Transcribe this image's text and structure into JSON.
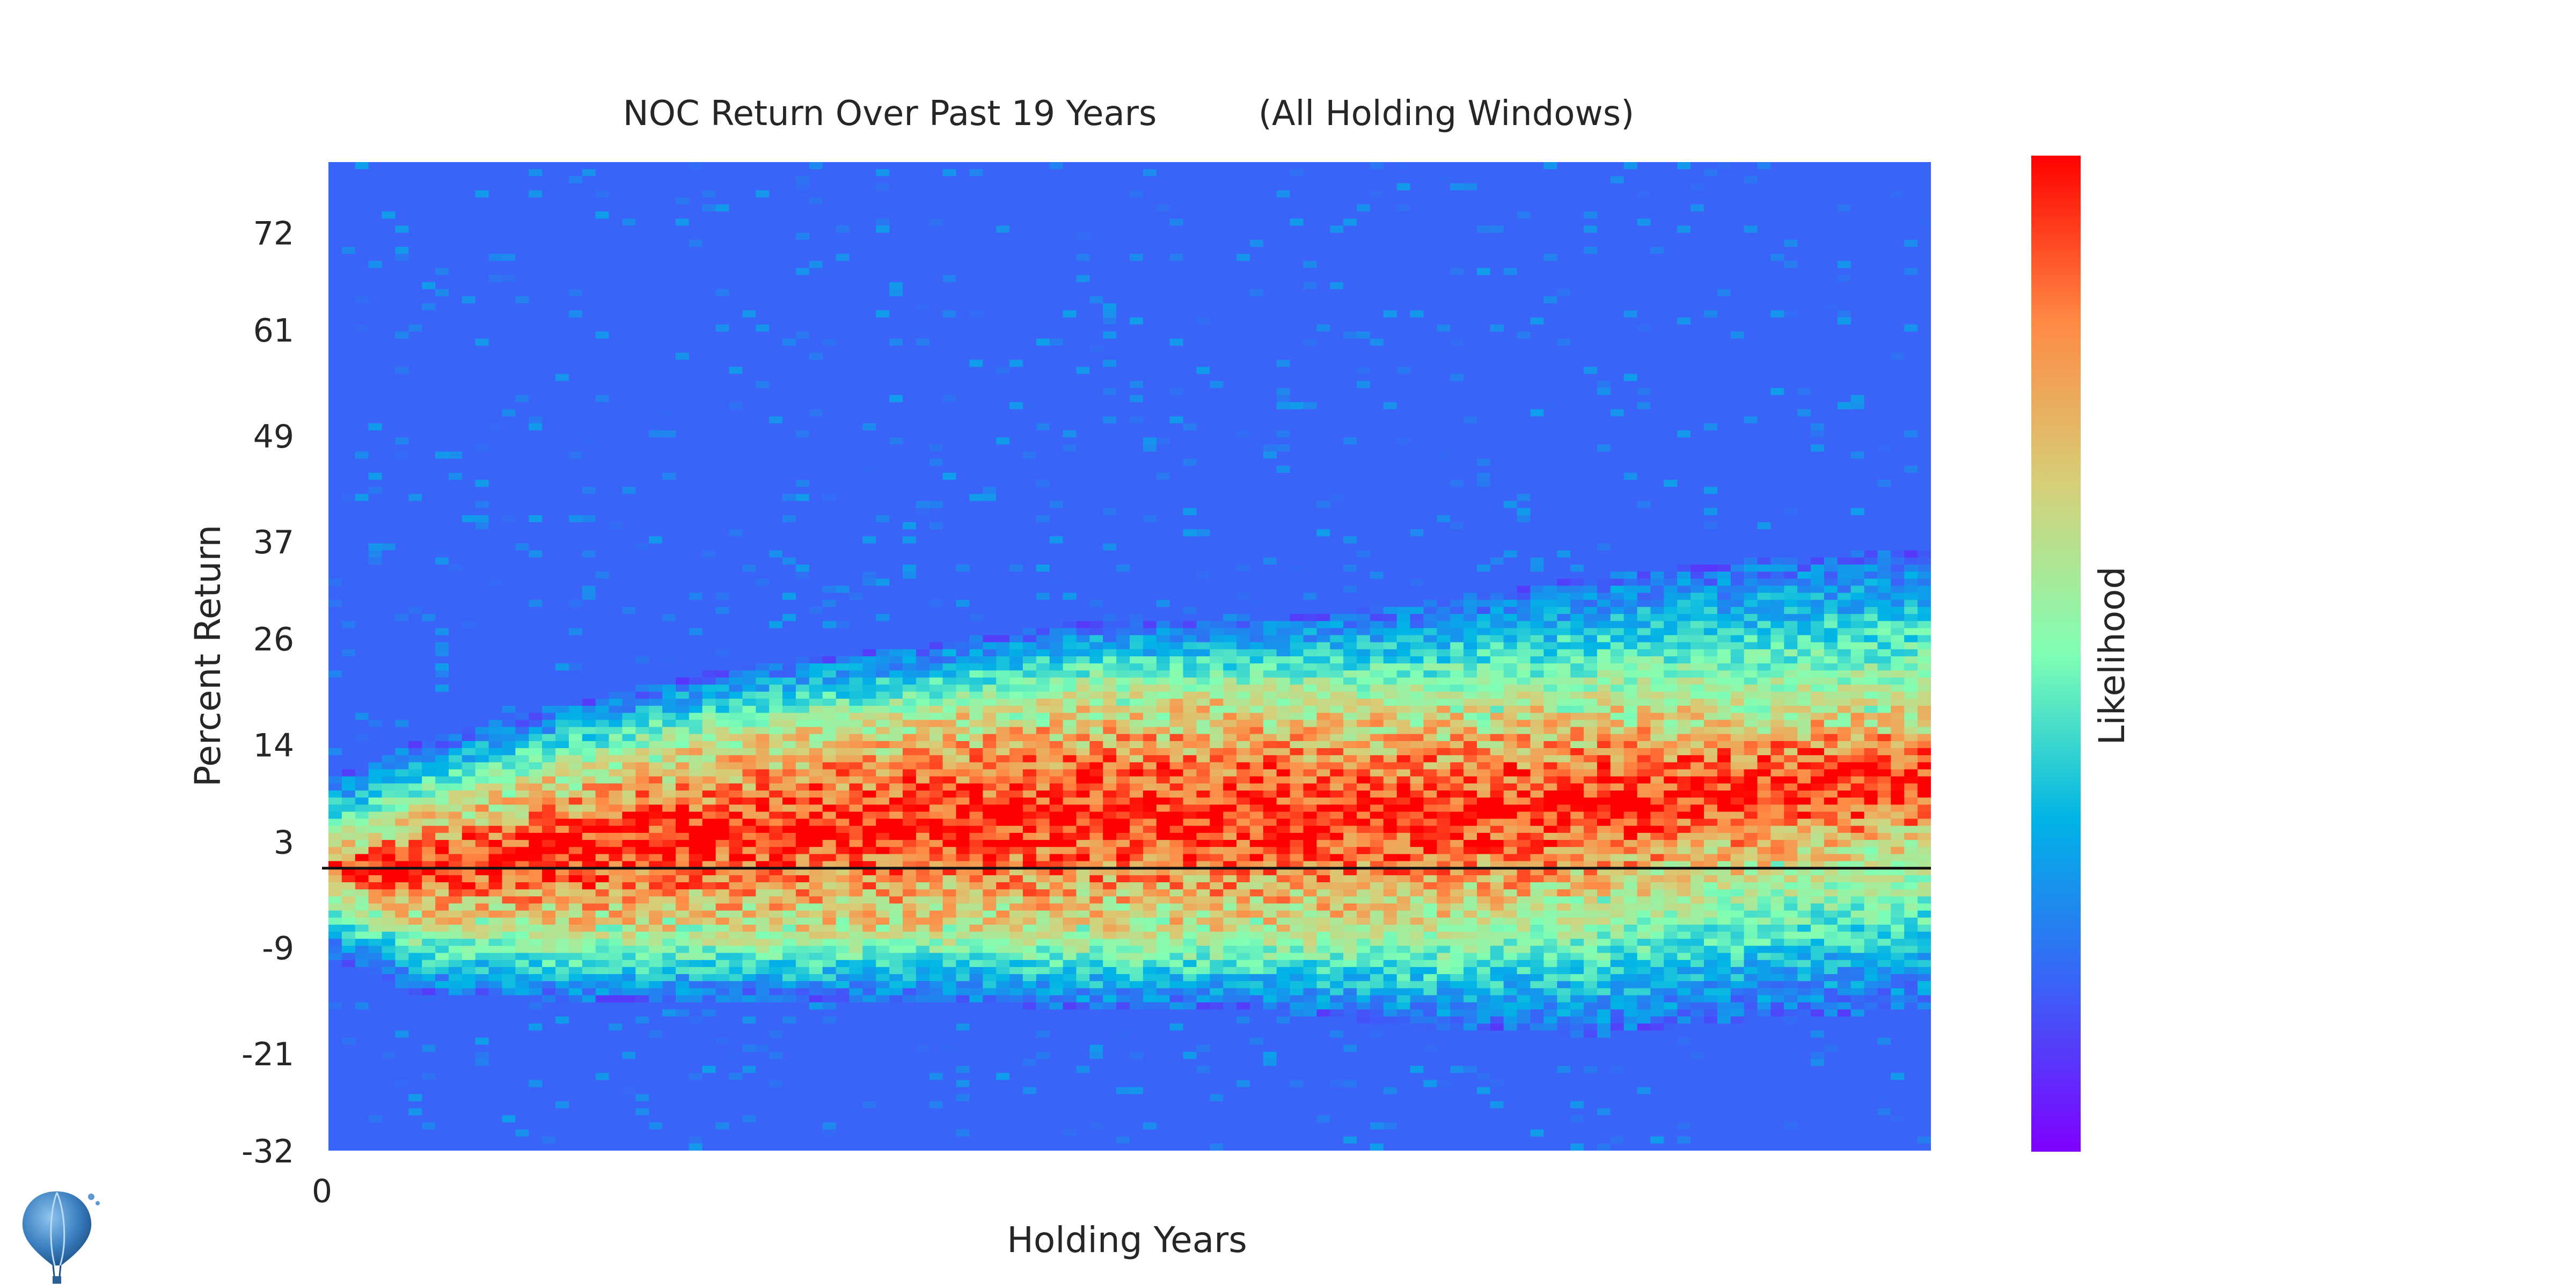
{
  "chart_data": {
    "type": "heatmap",
    "title_main": "NOC Return Over Past 19 Years",
    "title_sub": "(All Holding Windows)",
    "xlabel": "Holding Years",
    "ylabel": "Percent Return",
    "colorbar_label": "Likelihood",
    "x_ticks": [
      0
    ],
    "x_tick_labels": [
      "0"
    ],
    "y_ticks": [
      72,
      61,
      49,
      37,
      26,
      14,
      3,
      -9,
      -21,
      -32
    ],
    "y_tick_labels": [
      "72",
      "61",
      "49",
      "37",
      "26",
      "14",
      "3",
      "-9",
      "-21",
      "-32"
    ],
    "ylim": [
      -32,
      80
    ],
    "xlim": [
      0,
      19
    ],
    "zero_line_y": 0,
    "colormap": "rainbow",
    "colormap_stops": [
      "#7f00ff",
      "#3a62f7",
      "#00b4e6",
      "#80ffb4",
      "#d5d07a",
      "#ff8a44",
      "#ff0000"
    ],
    "background_color": "#5050ff",
    "density_ridge": [
      {
        "x": 0.0,
        "center": 0,
        "spread": 2,
        "halo": 10
      },
      {
        "x": 1.0,
        "center": 0,
        "spread": 6,
        "halo": 14
      },
      {
        "x": 3.0,
        "center": 2,
        "spread": 9,
        "halo": 17
      },
      {
        "x": 5.0,
        "center": 4,
        "spread": 11,
        "halo": 19
      },
      {
        "x": 7.0,
        "center": 5,
        "spread": 12,
        "halo": 20
      },
      {
        "x": 9.0,
        "center": 6,
        "spread": 13,
        "halo": 22
      },
      {
        "x": 11.0,
        "center": 6,
        "spread": 13,
        "halo": 22
      },
      {
        "x": 13.0,
        "center": 6,
        "spread": 12,
        "halo": 24
      },
      {
        "x": 15.0,
        "center": 7,
        "spread": 11,
        "halo": 26
      },
      {
        "x": 17.0,
        "center": 9,
        "spread": 9,
        "halo": 26
      },
      {
        "x": 19.0,
        "center": 10,
        "spread": 8,
        "halo": 26
      }
    ]
  }
}
